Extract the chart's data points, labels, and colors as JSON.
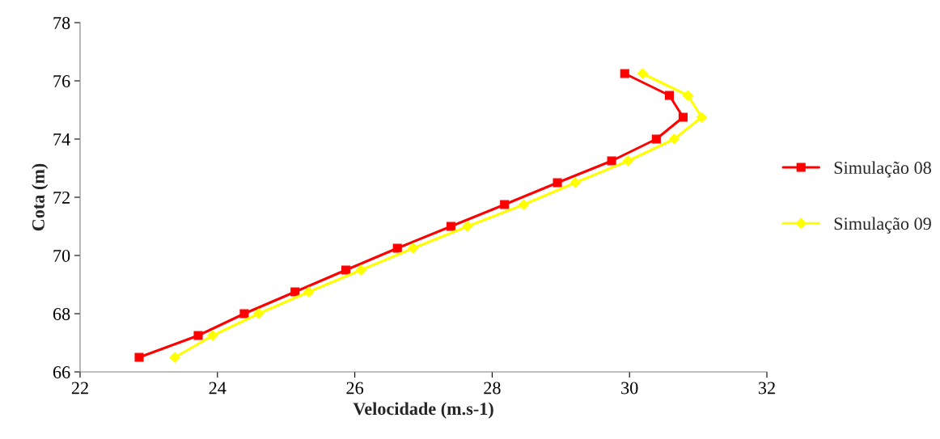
{
  "chart_data": {
    "type": "line",
    "xlabel": "Velocidade (m.s-1)",
    "ylabel": "Cota (m)",
    "xlim": [
      22,
      32
    ],
    "xticks": [
      22,
      24,
      26,
      28,
      30,
      32
    ],
    "ylim": [
      66,
      78
    ],
    "yticks": [
      66,
      68,
      70,
      72,
      74,
      76,
      78
    ],
    "grid": false,
    "legend": "right",
    "series": [
      {
        "name": "Simulação 08",
        "color": "#ff0000",
        "marker": "square",
        "x": [
          22.86,
          23.72,
          24.39,
          25.13,
          25.87,
          26.62,
          27.4,
          28.18,
          28.95,
          29.74,
          30.39,
          30.78,
          30.58,
          29.93
        ],
        "values": [
          66.5,
          67.25,
          68,
          68.75,
          69.5,
          70.25,
          71,
          71.75,
          72.5,
          73.25,
          74,
          74.75,
          75.5,
          76.25
        ]
      },
      {
        "name": "Simulação 09",
        "color": "#ffff00",
        "marker": "diamond",
        "x": [
          23.38,
          23.93,
          24.6,
          25.33,
          26.09,
          26.85,
          27.64,
          28.46,
          29.21,
          29.98,
          30.65,
          31.05,
          30.85,
          30.19
        ],
        "values": [
          66.5,
          67.25,
          68,
          68.75,
          69.5,
          70.25,
          71,
          71.75,
          72.5,
          73.25,
          74,
          74.75,
          75.5,
          76.25
        ]
      }
    ]
  }
}
